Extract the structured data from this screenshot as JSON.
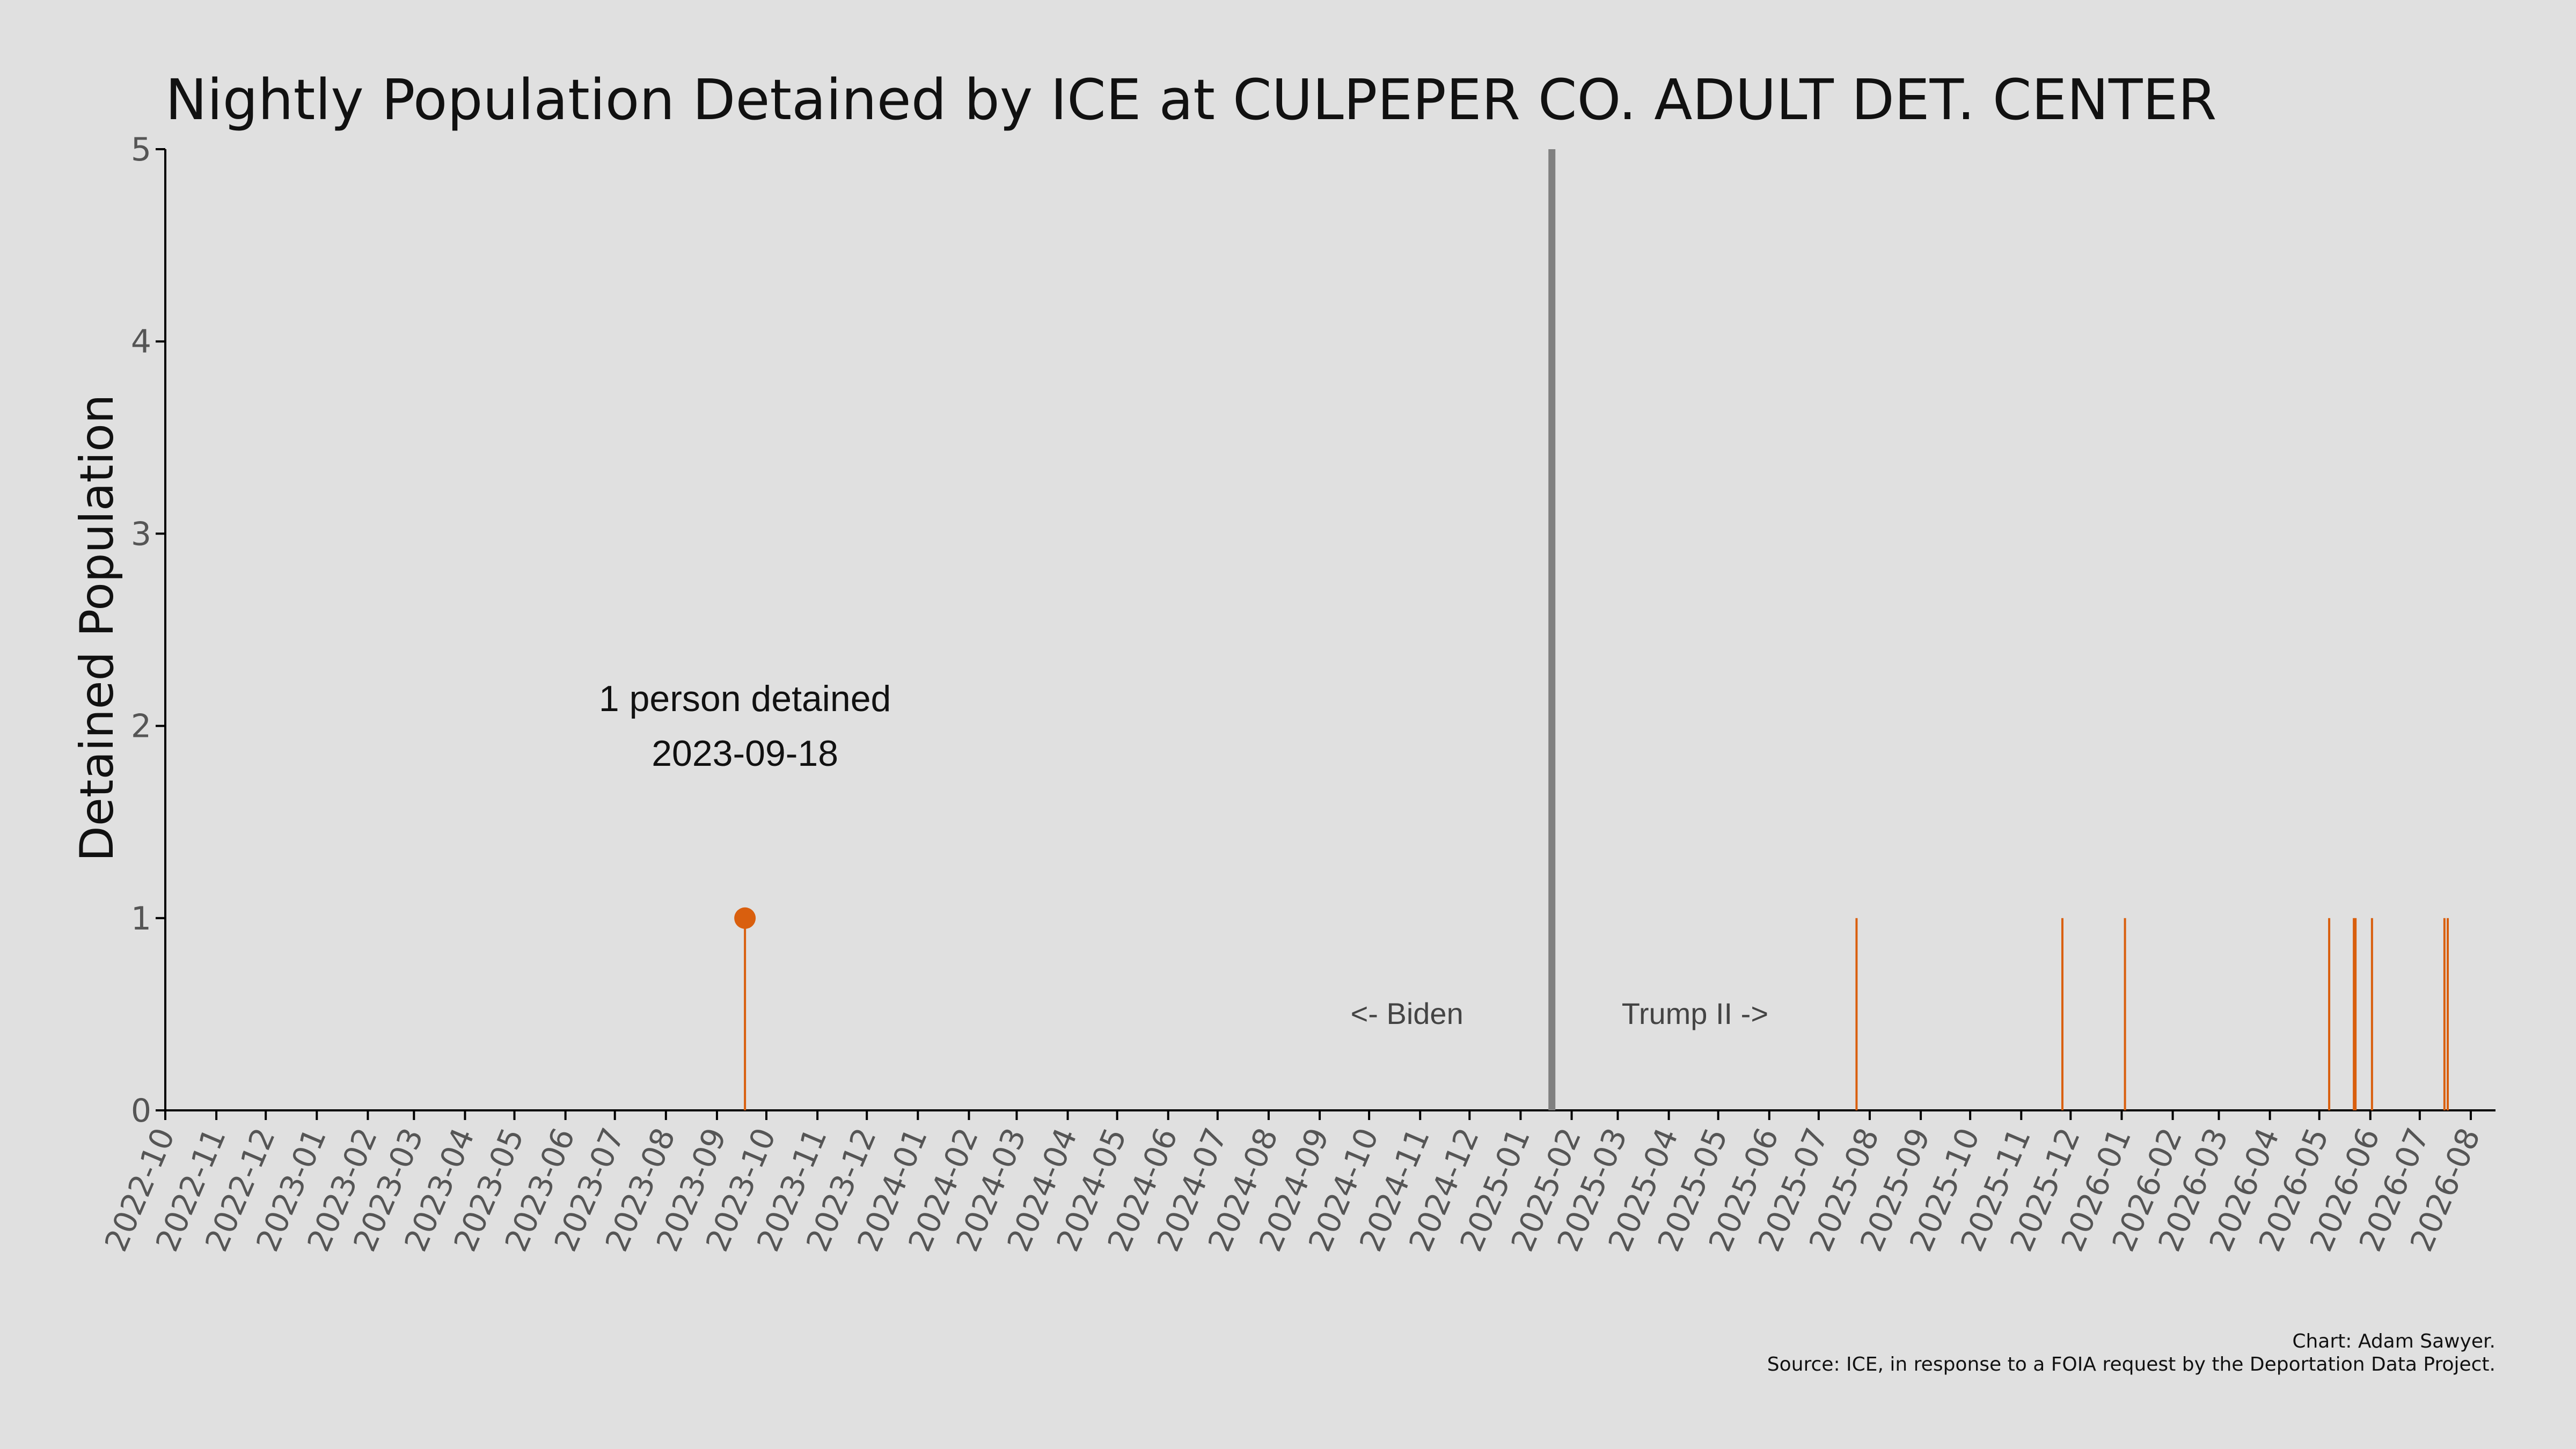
{
  "chart_data": {
    "type": "bar",
    "title": "Nightly Population Detained by ICE at CULPEPER CO. ADULT DET. CENTER",
    "xlabel": "",
    "ylabel": "Detained Population",
    "x_range": [
      "2022-10-01",
      "2026-08-16"
    ],
    "ylim": [
      0,
      5
    ],
    "yticks": [
      0,
      1,
      2,
      3,
      4,
      5
    ],
    "xtick_labels": [
      "2022-10",
      "2022-11",
      "2022-12",
      "2023-01",
      "2023-02",
      "2023-03",
      "2023-04",
      "2023-05",
      "2023-06",
      "2023-07",
      "2023-08",
      "2023-09",
      "2023-10",
      "2023-11",
      "2023-12",
      "2024-01",
      "2024-02",
      "2024-03",
      "2024-04",
      "2024-05",
      "2024-06",
      "2024-07",
      "2024-08",
      "2024-09",
      "2024-10",
      "2024-11",
      "2024-12",
      "2025-01",
      "2025-02",
      "2025-03",
      "2025-04",
      "2025-05",
      "2025-06",
      "2025-07",
      "2025-08",
      "2025-09",
      "2025-10",
      "2025-11",
      "2025-12",
      "2026-01",
      "2026-02",
      "2026-03",
      "2026-04",
      "2026-05",
      "2026-06",
      "2026-07",
      "2026-08"
    ],
    "points": [
      {
        "date": "2023-09-18",
        "value": 1
      },
      {
        "date": "2025-07-24",
        "value": 1
      },
      {
        "date": "2025-11-26",
        "value": 1
      },
      {
        "date": "2026-01-03",
        "value": 1
      },
      {
        "date": "2026-05-07",
        "value": 1
      },
      {
        "date": "2026-05-22",
        "value": 1
      },
      {
        "date": "2026-05-23",
        "value": 1
      },
      {
        "date": "2026-06-02",
        "value": 1
      },
      {
        "date": "2026-07-16",
        "value": 1
      },
      {
        "date": "2026-07-18",
        "value": 1
      }
    ],
    "highlight": {
      "date": "2023-09-18",
      "value": 1
    },
    "annotation": {
      "line1": "1 person detained",
      "line2": "2023-09-18"
    },
    "divider": {
      "date": "2025-01-20",
      "left_label": "<- Biden",
      "right_label": "Trump II ->"
    },
    "credit": {
      "line1": "Chart: Adam Sawyer.",
      "line2": "Source: ICE, in response to a FOIA request by the Deportation Data Project."
    },
    "colors": {
      "bar": "#d95f0e",
      "divider": "#808080",
      "axis": "#000000",
      "background": "#e0e0e0"
    }
  }
}
